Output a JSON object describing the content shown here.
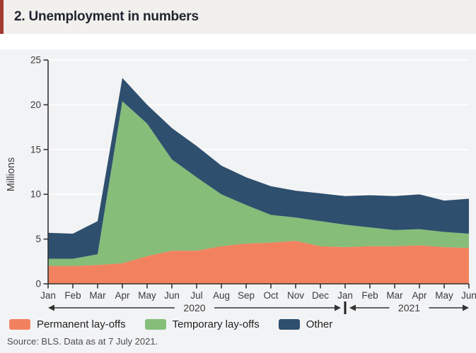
{
  "title": "2. Unemployment in numbers",
  "source_note": "Source: BLS. Data as at 7 July 2021.",
  "colors": {
    "accent_red": "#a43a31",
    "panel_bg": "#f2f3f5",
    "title_bg": "#f1f0ed",
    "permanent": "#f2825f",
    "temporary": "#85bd79",
    "other": "#2f4f6e",
    "axis": "#333333",
    "gridline": "#ffffff"
  },
  "legend": [
    {
      "label": "Permanent lay-offs",
      "color": "#f2825f"
    },
    {
      "label": "Temporary lay-offs",
      "color": "#85bd79"
    },
    {
      "label": "Other",
      "color": "#2f4f6e"
    }
  ],
  "chart_data": {
    "type": "area",
    "stacked": true,
    "title": "2. Unemployment in numbers",
    "xlabel": "",
    "ylabel": "Millions",
    "ylim": [
      0,
      25
    ],
    "yticks": [
      0,
      5,
      10,
      15,
      20,
      25
    ],
    "grid": true,
    "legend_position": "bottom",
    "categories": [
      "Jan",
      "Feb",
      "Mar",
      "Apr",
      "May",
      "Jun",
      "Jul",
      "Aug",
      "Sep",
      "Oct",
      "Nov",
      "Dec",
      "Jan",
      "Feb",
      "Mar",
      "Apr",
      "May",
      "Jun"
    ],
    "year_spans": [
      {
        "label": "2020",
        "from": 0,
        "to": 12
      },
      {
        "label": "2021",
        "from": 12,
        "to": 17
      }
    ],
    "series": [
      {
        "name": "Permanent lay-offs",
        "color": "#f2825f",
        "values": [
          2.0,
          2.0,
          2.1,
          2.3,
          3.1,
          3.7,
          3.7,
          4.2,
          4.5,
          4.6,
          4.8,
          4.2,
          4.1,
          4.2,
          4.2,
          4.3,
          4.1,
          4.0
        ]
      },
      {
        "name": "Temporary lay-offs",
        "color": "#85bd79",
        "values": [
          0.8,
          0.8,
          1.2,
          18.1,
          14.8,
          10.2,
          8.2,
          5.8,
          4.3,
          3.1,
          2.6,
          2.8,
          2.5,
          2.1,
          1.8,
          1.8,
          1.7,
          1.6
        ]
      },
      {
        "name": "Other",
        "color": "#2f4f6e",
        "values": [
          2.9,
          2.8,
          3.7,
          2.6,
          2.1,
          3.5,
          3.5,
          3.2,
          3.1,
          3.2,
          3.0,
          3.1,
          3.2,
          3.6,
          3.8,
          3.9,
          3.5,
          3.9
        ]
      }
    ]
  }
}
